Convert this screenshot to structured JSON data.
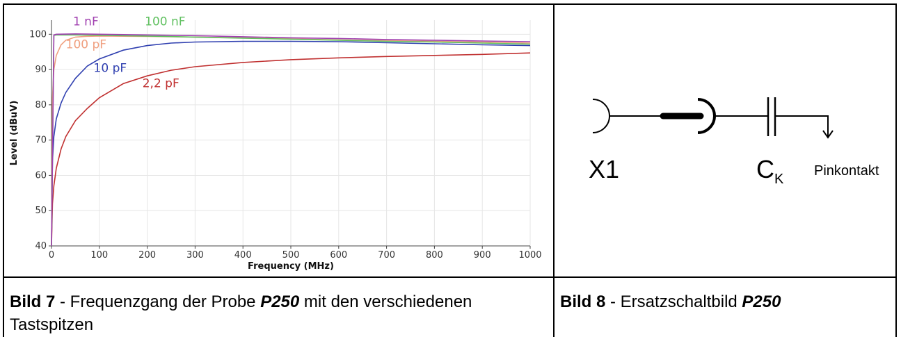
{
  "chart_data": {
    "type": "line",
    "xlabel": "Frequency (MHz)",
    "ylabel": "Level (dBuV)",
    "xlim": [
      0,
      1000
    ],
    "ylim": [
      40,
      104
    ],
    "xticks": [
      0,
      100,
      200,
      300,
      400,
      500,
      600,
      700,
      800,
      900,
      1000
    ],
    "yticks": [
      40,
      50,
      60,
      70,
      80,
      90,
      100
    ],
    "grid": true,
    "series": [
      {
        "name": "1 nF",
        "color": "#a040b0",
        "x": [
          0,
          5,
          10,
          50,
          100,
          200,
          300,
          400,
          500,
          600,
          700,
          800,
          900,
          1000
        ],
        "y": [
          40,
          99.8,
          100.0,
          100.1,
          100.0,
          99.8,
          99.6,
          99.3,
          99.0,
          98.8,
          98.5,
          98.3,
          98.1,
          97.9
        ]
      },
      {
        "name": "100 nF",
        "color": "#60c060",
        "x": [
          0,
          5,
          10,
          50,
          100,
          200,
          300,
          400,
          500,
          600,
          700,
          800,
          900,
          1000
        ],
        "y": [
          40,
          99.7,
          99.8,
          99.8,
          99.7,
          99.5,
          99.2,
          98.9,
          98.6,
          98.3,
          98.0,
          97.8,
          97.5,
          97.2
        ]
      },
      {
        "name": "100 pF",
        "color": "#f0a080",
        "x": [
          0,
          2,
          5,
          10,
          20,
          30,
          50,
          70,
          100,
          200,
          300,
          400,
          500,
          600,
          700,
          800,
          900,
          1000
        ],
        "y": [
          40,
          82,
          90,
          94,
          97,
          98.3,
          99.2,
          99.4,
          99.5,
          99.4,
          99.2,
          99.0,
          98.7,
          98.4,
          98.2,
          98.0,
          97.8,
          97.5
        ]
      },
      {
        "name": "10 pF",
        "color": "#3040b0",
        "x": [
          0,
          2,
          5,
          10,
          20,
          30,
          50,
          75,
          100,
          150,
          200,
          250,
          300,
          400,
          500,
          600,
          700,
          800,
          900,
          1000
        ],
        "y": [
          40,
          64,
          71,
          76,
          80.5,
          83.5,
          87.5,
          91,
          93,
          95.5,
          96.8,
          97.5,
          97.8,
          98.0,
          98.0,
          97.9,
          97.6,
          97.3,
          97.0,
          96.8
        ]
      },
      {
        "name": "2,2 pF",
        "color": "#c03030",
        "x": [
          0,
          2,
          5,
          10,
          20,
          30,
          50,
          75,
          100,
          150,
          200,
          250,
          300,
          400,
          500,
          600,
          700,
          800,
          900,
          1000
        ],
        "y": [
          40,
          52,
          57,
          62,
          67.5,
          71,
          75.5,
          79,
          82,
          86,
          88.2,
          89.8,
          90.8,
          92.0,
          92.8,
          93.3,
          93.7,
          94.0,
          94.3,
          94.7
        ]
      }
    ]
  },
  "circuit": {
    "label_x1": "X1",
    "label_ck_main": "C",
    "label_ck_sub": "K",
    "label_pin": "Pinkontakt"
  },
  "captions": {
    "left": {
      "prefix": "Bild 7",
      "text1": " - Frequenzgang der Probe ",
      "probe": "P250",
      "text2": " mit den verschiedenen Tastspitzen"
    },
    "right": {
      "prefix": "Bild 8",
      "text1": " - Ersatzschaltbild ",
      "probe": "P250"
    }
  }
}
